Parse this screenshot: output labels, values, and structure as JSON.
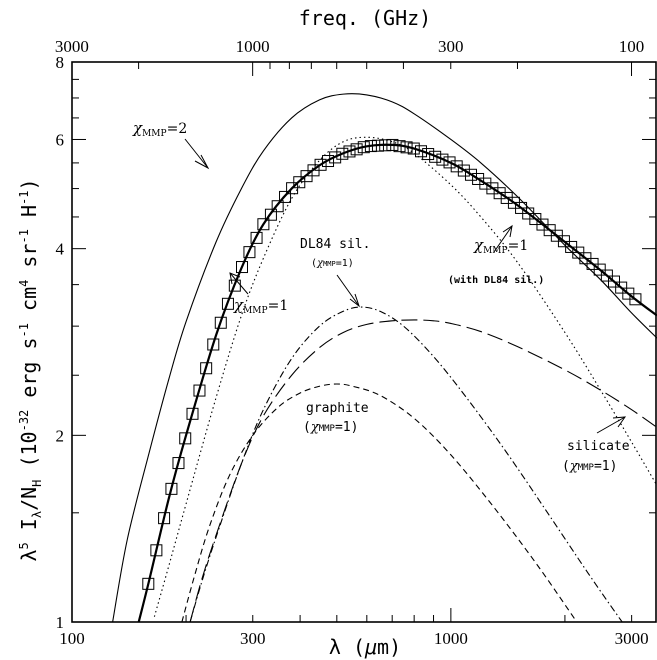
{
  "chart_data": {
    "type": "line",
    "xlabel": "λ (μm)",
    "ylabel_lines": [
      "λ⁵ I",
      "λ",
      "/N",
      "H",
      "  (10",
      "-32",
      " erg s",
      "-1",
      " cm",
      "4",
      " sr",
      "-1",
      " H",
      "-1",
      ")"
    ],
    "top_xlabel": "freq.   (GHz)",
    "x_scale": "log",
    "y_scale": "log",
    "xlim": [
      100,
      3500
    ],
    "ylim": [
      1,
      8
    ],
    "x_ticks": [
      100,
      300,
      1000,
      3000
    ],
    "x_tick_labels": [
      "100",
      "300",
      "1000",
      "3000"
    ],
    "y_ticks": [
      1,
      2,
      4,
      6,
      8
    ],
    "y_tick_labels": [
      "1",
      "2",
      "4",
      "6",
      "8"
    ],
    "top_ticks_ghz": [
      3000,
      1000,
      300,
      100
    ],
    "top_tick_labels": [
      "3000",
      "1000",
      "300",
      "100"
    ],
    "series": [
      {
        "style": "solid-thin",
        "x": [
          128,
          140,
          160,
          180,
          200,
          240,
          280,
          320,
          380,
          450,
          520,
          600,
          700,
          800,
          1000,
          1200,
          1500,
          2000,
          2500,
          3000,
          3500
        ],
        "y": [
          1.0,
          1.36,
          1.88,
          2.46,
          3.05,
          4.1,
          5.0,
          5.75,
          6.5,
          6.95,
          7.1,
          7.08,
          6.9,
          6.6,
          6.0,
          5.5,
          4.85,
          4.05,
          3.55,
          3.15,
          2.87
        ]
      },
      {
        "style": "dotted",
        "x": [
          165,
          180,
          200,
          240,
          280,
          320,
          380,
          450,
          520,
          600,
          700,
          800,
          1000,
          1200,
          1500,
          2000,
          2500,
          3000,
          3500
        ],
        "y": [
          1.02,
          1.23,
          1.55,
          2.3,
          3.12,
          3.86,
          4.82,
          5.55,
          5.95,
          6.05,
          5.95,
          5.7,
          5.07,
          4.5,
          3.8,
          2.93,
          2.35,
          1.95,
          1.66
        ]
      },
      {
        "style": "solid-thick",
        "x": [
          150,
          160,
          180,
          200,
          240,
          280,
          320,
          380,
          450,
          520,
          600,
          700,
          800,
          1000,
          1200,
          1500,
          2000,
          2500,
          3000,
          3500
        ],
        "y": [
          1.0,
          1.17,
          1.58,
          2.0,
          2.9,
          3.72,
          4.38,
          5.0,
          5.45,
          5.7,
          5.85,
          5.88,
          5.8,
          5.5,
          5.15,
          4.7,
          4.1,
          3.68,
          3.35,
          3.12
        ]
      },
      {
        "style": "dashdot",
        "x": [
          205,
          220,
          240,
          280,
          320,
          380,
          450,
          520,
          580,
          650,
          750,
          900,
          1100,
          1400,
          1800,
          2300,
          2800,
          3300
        ],
        "y": [
          1.0,
          1.16,
          1.37,
          1.8,
          2.2,
          2.66,
          3.0,
          3.17,
          3.22,
          3.17,
          3.0,
          2.68,
          2.3,
          1.88,
          1.5,
          1.2,
          1.01,
          0.88
        ]
      },
      {
        "style": "long-dash",
        "x": [
          205,
          220,
          240,
          280,
          320,
          380,
          450,
          520,
          600,
          700,
          800,
          900,
          1000,
          1200,
          1500,
          2000,
          2500,
          3000,
          3500
        ],
        "y": [
          1.0,
          1.17,
          1.38,
          1.8,
          2.15,
          2.5,
          2.77,
          2.93,
          3.02,
          3.06,
          3.07,
          3.06,
          3.03,
          2.94,
          2.78,
          2.55,
          2.36,
          2.2,
          2.06
        ]
      },
      {
        "style": "short-dash",
        "x": [
          195,
          210,
          230,
          260,
          300,
          350,
          400,
          450,
          500,
          550,
          650,
          800,
          1000,
          1300,
          1700,
          2200,
          2700
        ],
        "y": [
          1.0,
          1.18,
          1.42,
          1.72,
          2.0,
          2.22,
          2.34,
          2.4,
          2.42,
          2.4,
          2.32,
          2.13,
          1.86,
          1.53,
          1.23,
          0.98,
          0.82
        ]
      }
    ],
    "markers": {
      "shape": "open-square",
      "x": [
        159,
        167,
        175,
        183,
        191,
        199,
        208,
        217,
        226,
        236,
        247,
        258,
        269,
        281,
        294,
        307,
        320,
        335,
        349,
        365,
        381,
        398,
        416,
        434,
        453,
        474,
        495,
        517,
        540,
        564,
        589,
        615,
        642,
        671,
        701,
        732,
        764,
        798,
        834,
        871,
        909,
        950,
        992,
        1036,
        1082,
        1130,
        1180,
        1233,
        1287,
        1345,
        1404,
        1467,
        1532,
        1600,
        1671,
        1745,
        1823,
        1904,
        1988,
        2077,
        2169,
        2265,
        2366,
        2471,
        2581,
        2695,
        2815,
        2940,
        3070
      ]
    },
    "annotations": [
      {
        "text": "χ",
        "sub": "MMP",
        "rest": "=2"
      },
      {
        "text": "χ",
        "sub": "MMP",
        "rest": "=1"
      },
      {
        "text": "DL84 sil.",
        "sub2": "(χMMP=1)"
      },
      {
        "text": "χ",
        "sub": "MMP",
        "rest": "=1",
        "note": "(with DL84 sil.)"
      },
      {
        "text": "graphite",
        "sub2": "(χMMP=1)"
      },
      {
        "text": "silicate",
        "sub2": "(χMMP=1)"
      }
    ]
  }
}
